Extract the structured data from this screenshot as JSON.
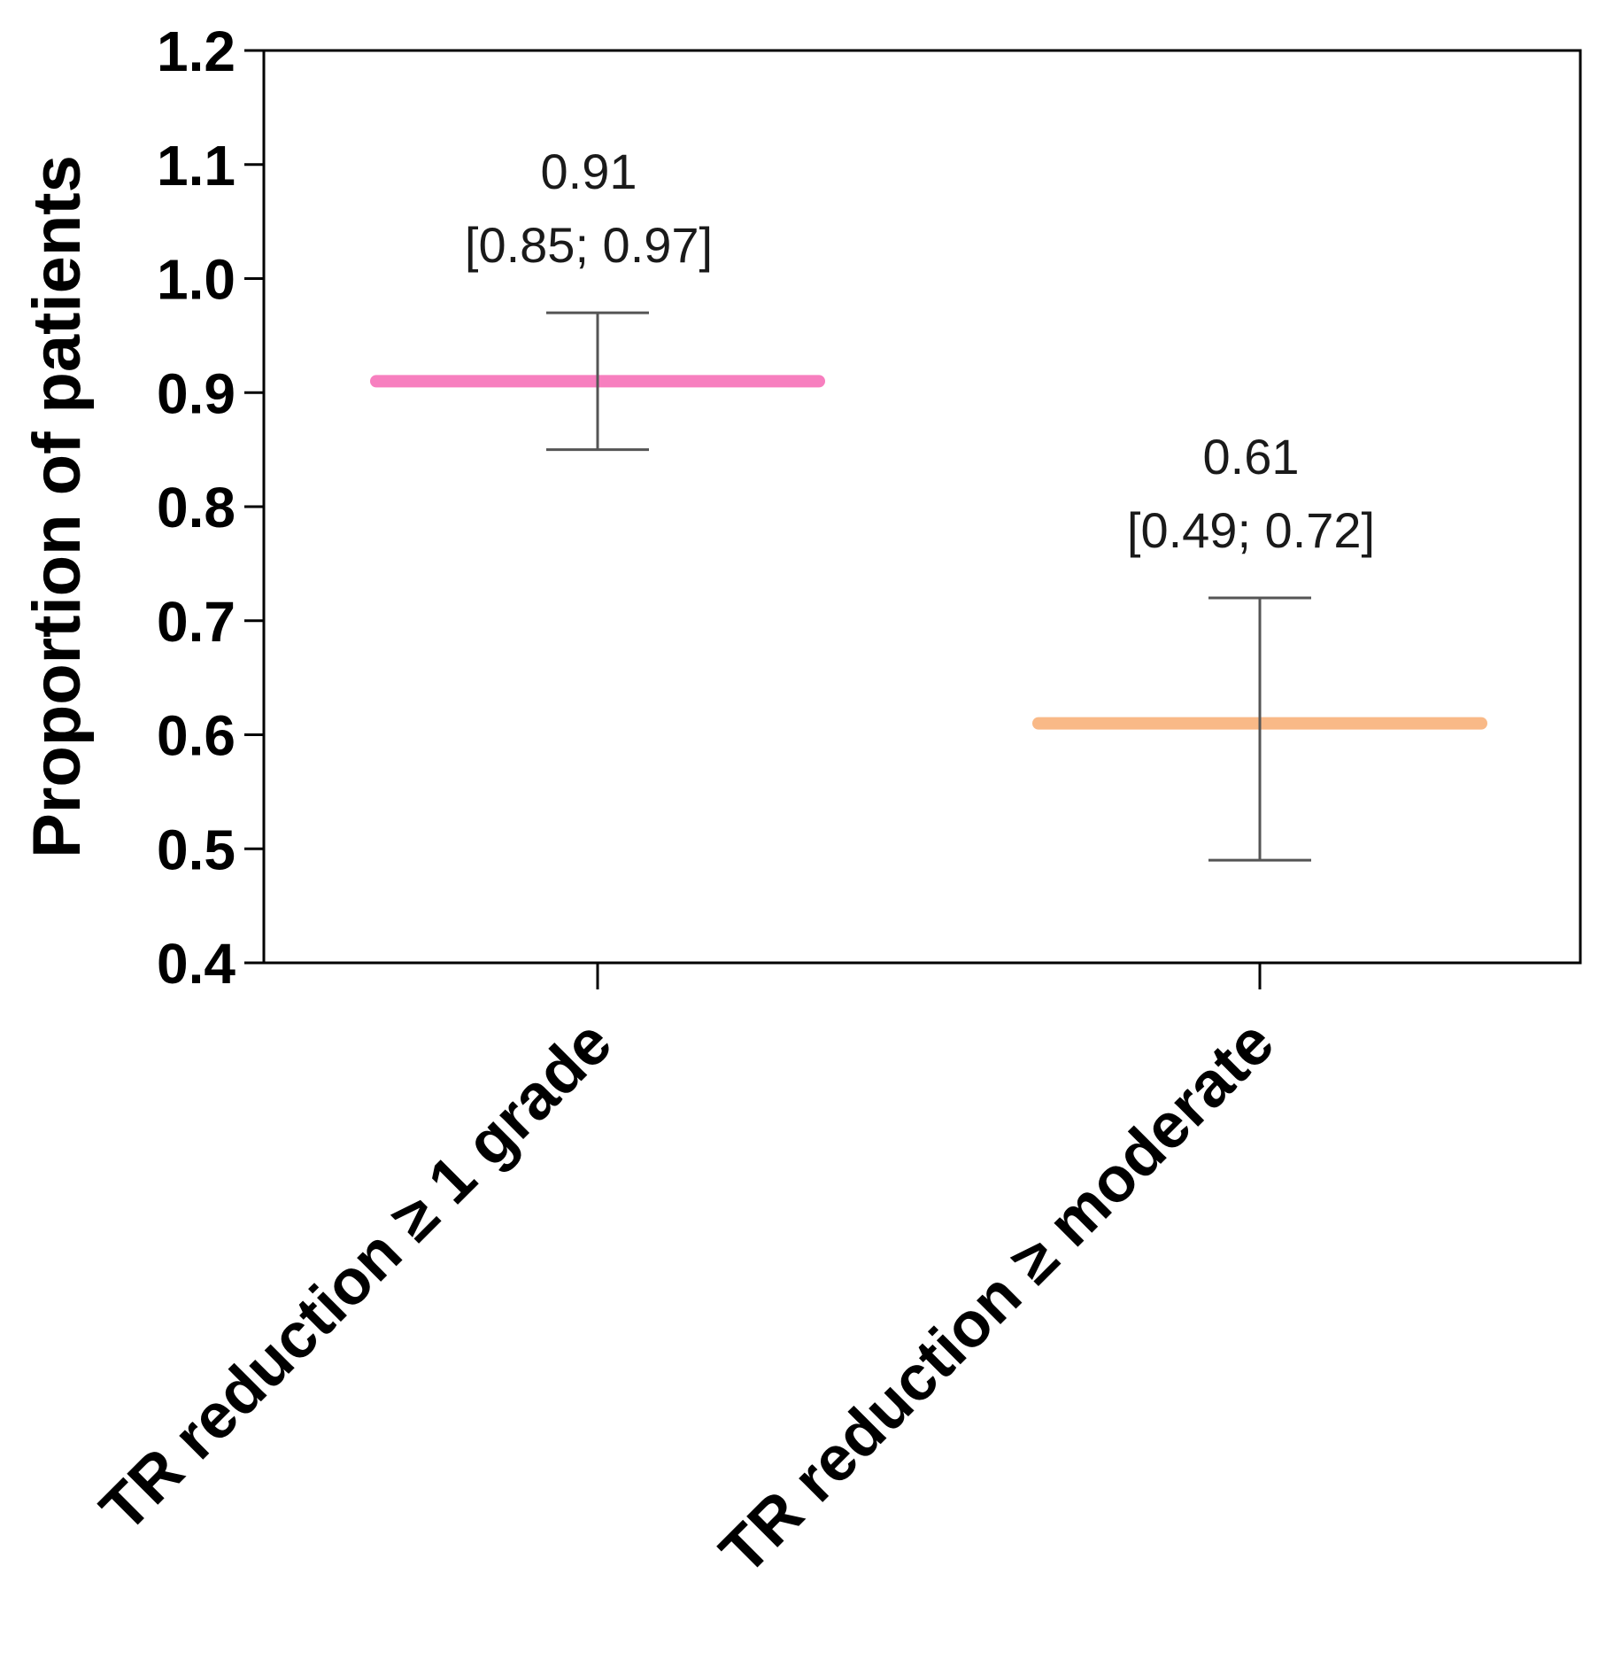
{
  "chart_data": {
    "type": "errorbar",
    "ylabel": "Proportion of patients",
    "ylim": [
      0.4,
      1.2
    ],
    "yticks": [
      0.4,
      0.5,
      0.6,
      0.7,
      0.8,
      0.9,
      1.0,
      1.1,
      1.2
    ],
    "ytick_labels": [
      "0.4",
      "0.5",
      "0.6",
      "0.7",
      "0.8",
      "0.9",
      "1.0",
      "1.1",
      "1.2"
    ],
    "grid": false,
    "categories": [
      "TR reduction ≥ 1 grade",
      "TR reduction ≥ moderate"
    ],
    "points": [
      {
        "category": "TR reduction ≥ 1 grade",
        "value": 0.91,
        "ci_low": 0.85,
        "ci_high": 0.97,
        "color": "#f77fbf",
        "value_label": "0.91",
        "ci_label": "[0.85; 0.97]"
      },
      {
        "category": "TR reduction ≥ moderate",
        "value": 0.61,
        "ci_low": 0.49,
        "ci_high": 0.72,
        "color": "#f9b987",
        "value_label": "0.61",
        "ci_label": "[0.49; 0.72]"
      }
    ]
  }
}
